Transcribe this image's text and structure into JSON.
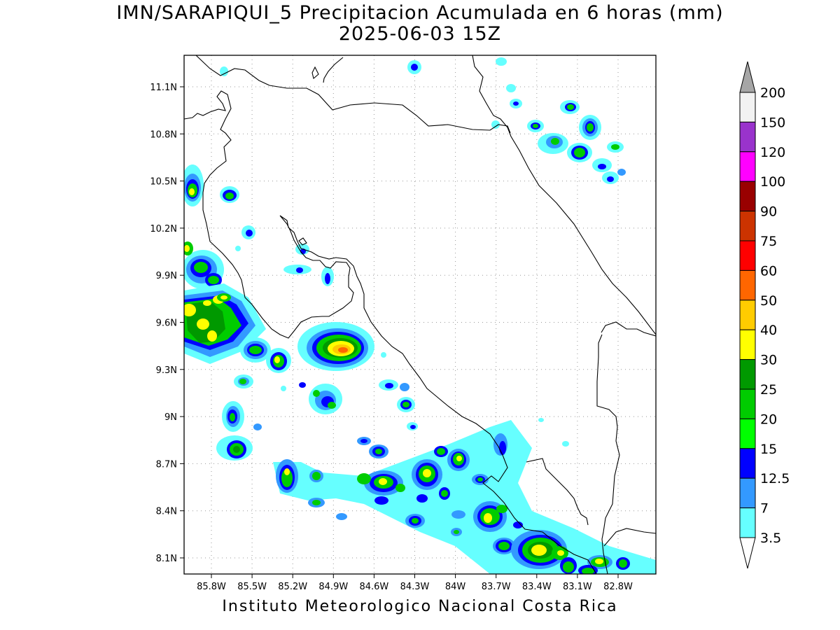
{
  "title_line1": "IMN/SARAPIQUI_5 Precipitacion Acumulada en 6 horas (mm)",
  "title_line2": "2025-06-03 15Z",
  "footer": "Instituto Meteorologico Nacional Costa Rica",
  "map": {
    "lon_range": [
      -86.06,
      -82.47
    ],
    "lat_range": [
      8.0,
      11.3
    ],
    "lat_ticks": [
      "11.1N",
      "10.8N",
      "10.5N",
      "10.2N",
      "9.9N",
      "9.6N",
      "9.3N",
      "9N",
      "8.7N",
      "8.4N",
      "8.1N"
    ],
    "lon_ticks": [
      "85.8W",
      "85.5W",
      "85.2W",
      "84.9W",
      "84.6W",
      "84.3W",
      "84W",
      "83.7W",
      "83.4W",
      "83.1W",
      "82.8W"
    ],
    "grid": "dotted"
  },
  "colorbar": {
    "labels": [
      "3.5",
      "7",
      "12.5",
      "15",
      "20",
      "25",
      "30",
      "40",
      "50",
      "60",
      "75",
      "90",
      "100",
      "120",
      "150",
      "200"
    ],
    "colors": [
      "#66ffff",
      "#3399ff",
      "#0000ff",
      "#00ff00",
      "#00cc00",
      "#009900",
      "#ffff00",
      "#ffcc00",
      "#ff6600",
      "#ff0000",
      "#cc3300",
      "#990000",
      "#ff00ff",
      "#9933cc",
      "#f2f2f2"
    ],
    "under_color": "#ffffff",
    "over_color": "#a6a6a6"
  }
}
